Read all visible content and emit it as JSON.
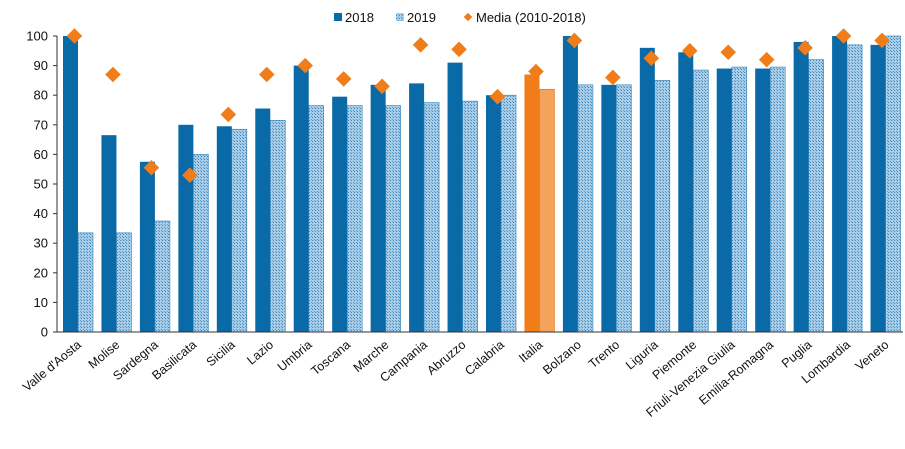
{
  "chart_data": {
    "type": "bar",
    "title": "",
    "xlabel": "",
    "ylabel": "",
    "ylim": [
      0,
      100
    ],
    "yticks": [
      0,
      10,
      20,
      30,
      40,
      50,
      60,
      70,
      80,
      90,
      100
    ],
    "grid": false,
    "legend_position": "top-center",
    "colors": {
      "bar_2018": "#0a6aa8",
      "bar_2019": "#9fc6e2",
      "bar_2019_hatch": "#3b86bd",
      "highlight_2018": "#f07d1a",
      "highlight_2019": "#f5a35c",
      "marker": "#f07d1a"
    },
    "highlight_category": "Italia",
    "categories": [
      "Valle d'Aosta",
      "Molise",
      "Sardegna",
      "Basilicata",
      "Sicilia",
      "Lazio",
      "Umbria",
      "Toscana",
      "Marche",
      "Campania",
      "Abruzzo",
      "Calabria",
      "Italia",
      "Bolzano",
      "Trento",
      "Liguria",
      "Piemonte",
      "Friuli-Venezia Giulia",
      "Emilia-Romagna",
      "Puglia",
      "Lombardia",
      "Veneto"
    ],
    "series": [
      {
        "name": "2018",
        "kind": "bar",
        "values": [
          100,
          66.5,
          57.5,
          70,
          69.5,
          75.5,
          90,
          79.5,
          83.5,
          84,
          91,
          80,
          87,
          100,
          83.5,
          96,
          94.5,
          89,
          89,
          98,
          100,
          97
        ]
      },
      {
        "name": "2019",
        "kind": "bar",
        "values": [
          33.5,
          33.5,
          37.5,
          60,
          68.5,
          71.5,
          76.5,
          76.5,
          76.5,
          77.5,
          78,
          80,
          82,
          83.5,
          83.5,
          85,
          88.5,
          89.5,
          89.5,
          92,
          97,
          100
        ]
      },
      {
        "name": "Media (2010-2018)",
        "kind": "marker",
        "values": [
          100,
          87,
          55.5,
          53,
          73.5,
          87,
          90,
          85.5,
          83,
          97,
          95.5,
          79.5,
          88,
          98.5,
          86,
          92.5,
          95,
          94.5,
          92,
          96,
          100,
          98.5
        ]
      }
    ]
  }
}
